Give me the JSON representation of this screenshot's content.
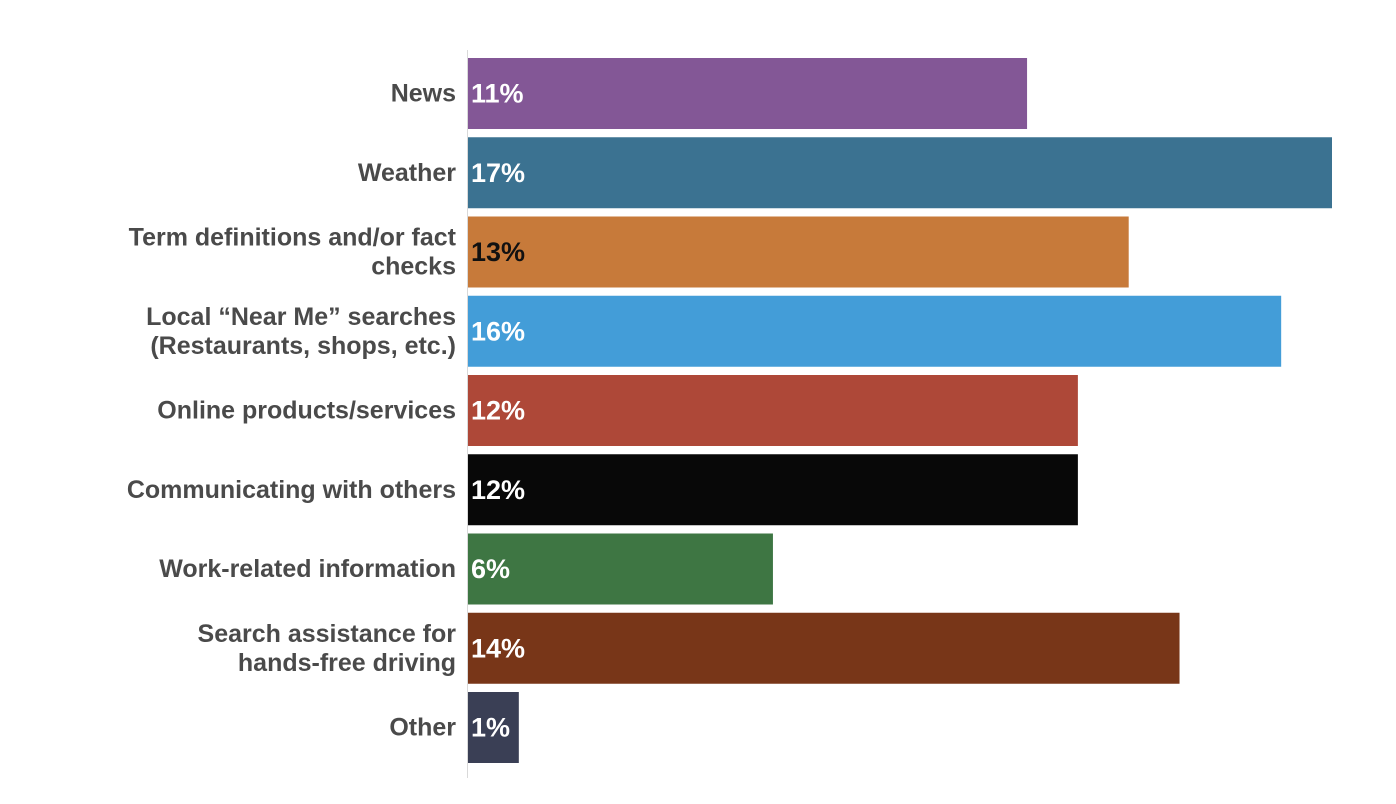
{
  "chart_data": {
    "type": "bar",
    "orientation": "horizontal",
    "categories": [
      [
        "News"
      ],
      [
        "Weather"
      ],
      [
        "Term definitions and/or fact",
        "checks"
      ],
      [
        "Local “Near Me” searches",
        "(Restaurants, shops, etc.)"
      ],
      [
        "Online products/services"
      ],
      [
        "Communicating with others"
      ],
      [
        "Work-related information"
      ],
      [
        "Search assistance for",
        "hands-free driving"
      ],
      [
        "Other"
      ]
    ],
    "values": [
      11,
      17,
      13,
      16,
      12,
      12,
      6,
      14,
      1
    ],
    "data_labels": [
      "11%",
      "17%",
      "13%",
      "16%",
      "12%",
      "12%",
      "6%",
      "14%",
      "1%"
    ],
    "unit": "%",
    "xlim": [
      0,
      17
    ],
    "grid": false,
    "legend": "none",
    "bar_colors": [
      "#835796",
      "#3b7291",
      "#c77a3a",
      "#439dd8",
      "#ae4838",
      "#080808",
      "#3e7643",
      "#783618",
      "#3a3f55"
    ],
    "label_colors": [
      "#ffffff",
      "#ffffff",
      "#111111",
      "#ffffff",
      "#ffffff",
      "#ffffff",
      "#ffffff",
      "#ffffff",
      "#ffffff"
    ],
    "axis_color": "#d9d9d9",
    "title": "",
    "xlabel": "",
    "ylabel": ""
  }
}
